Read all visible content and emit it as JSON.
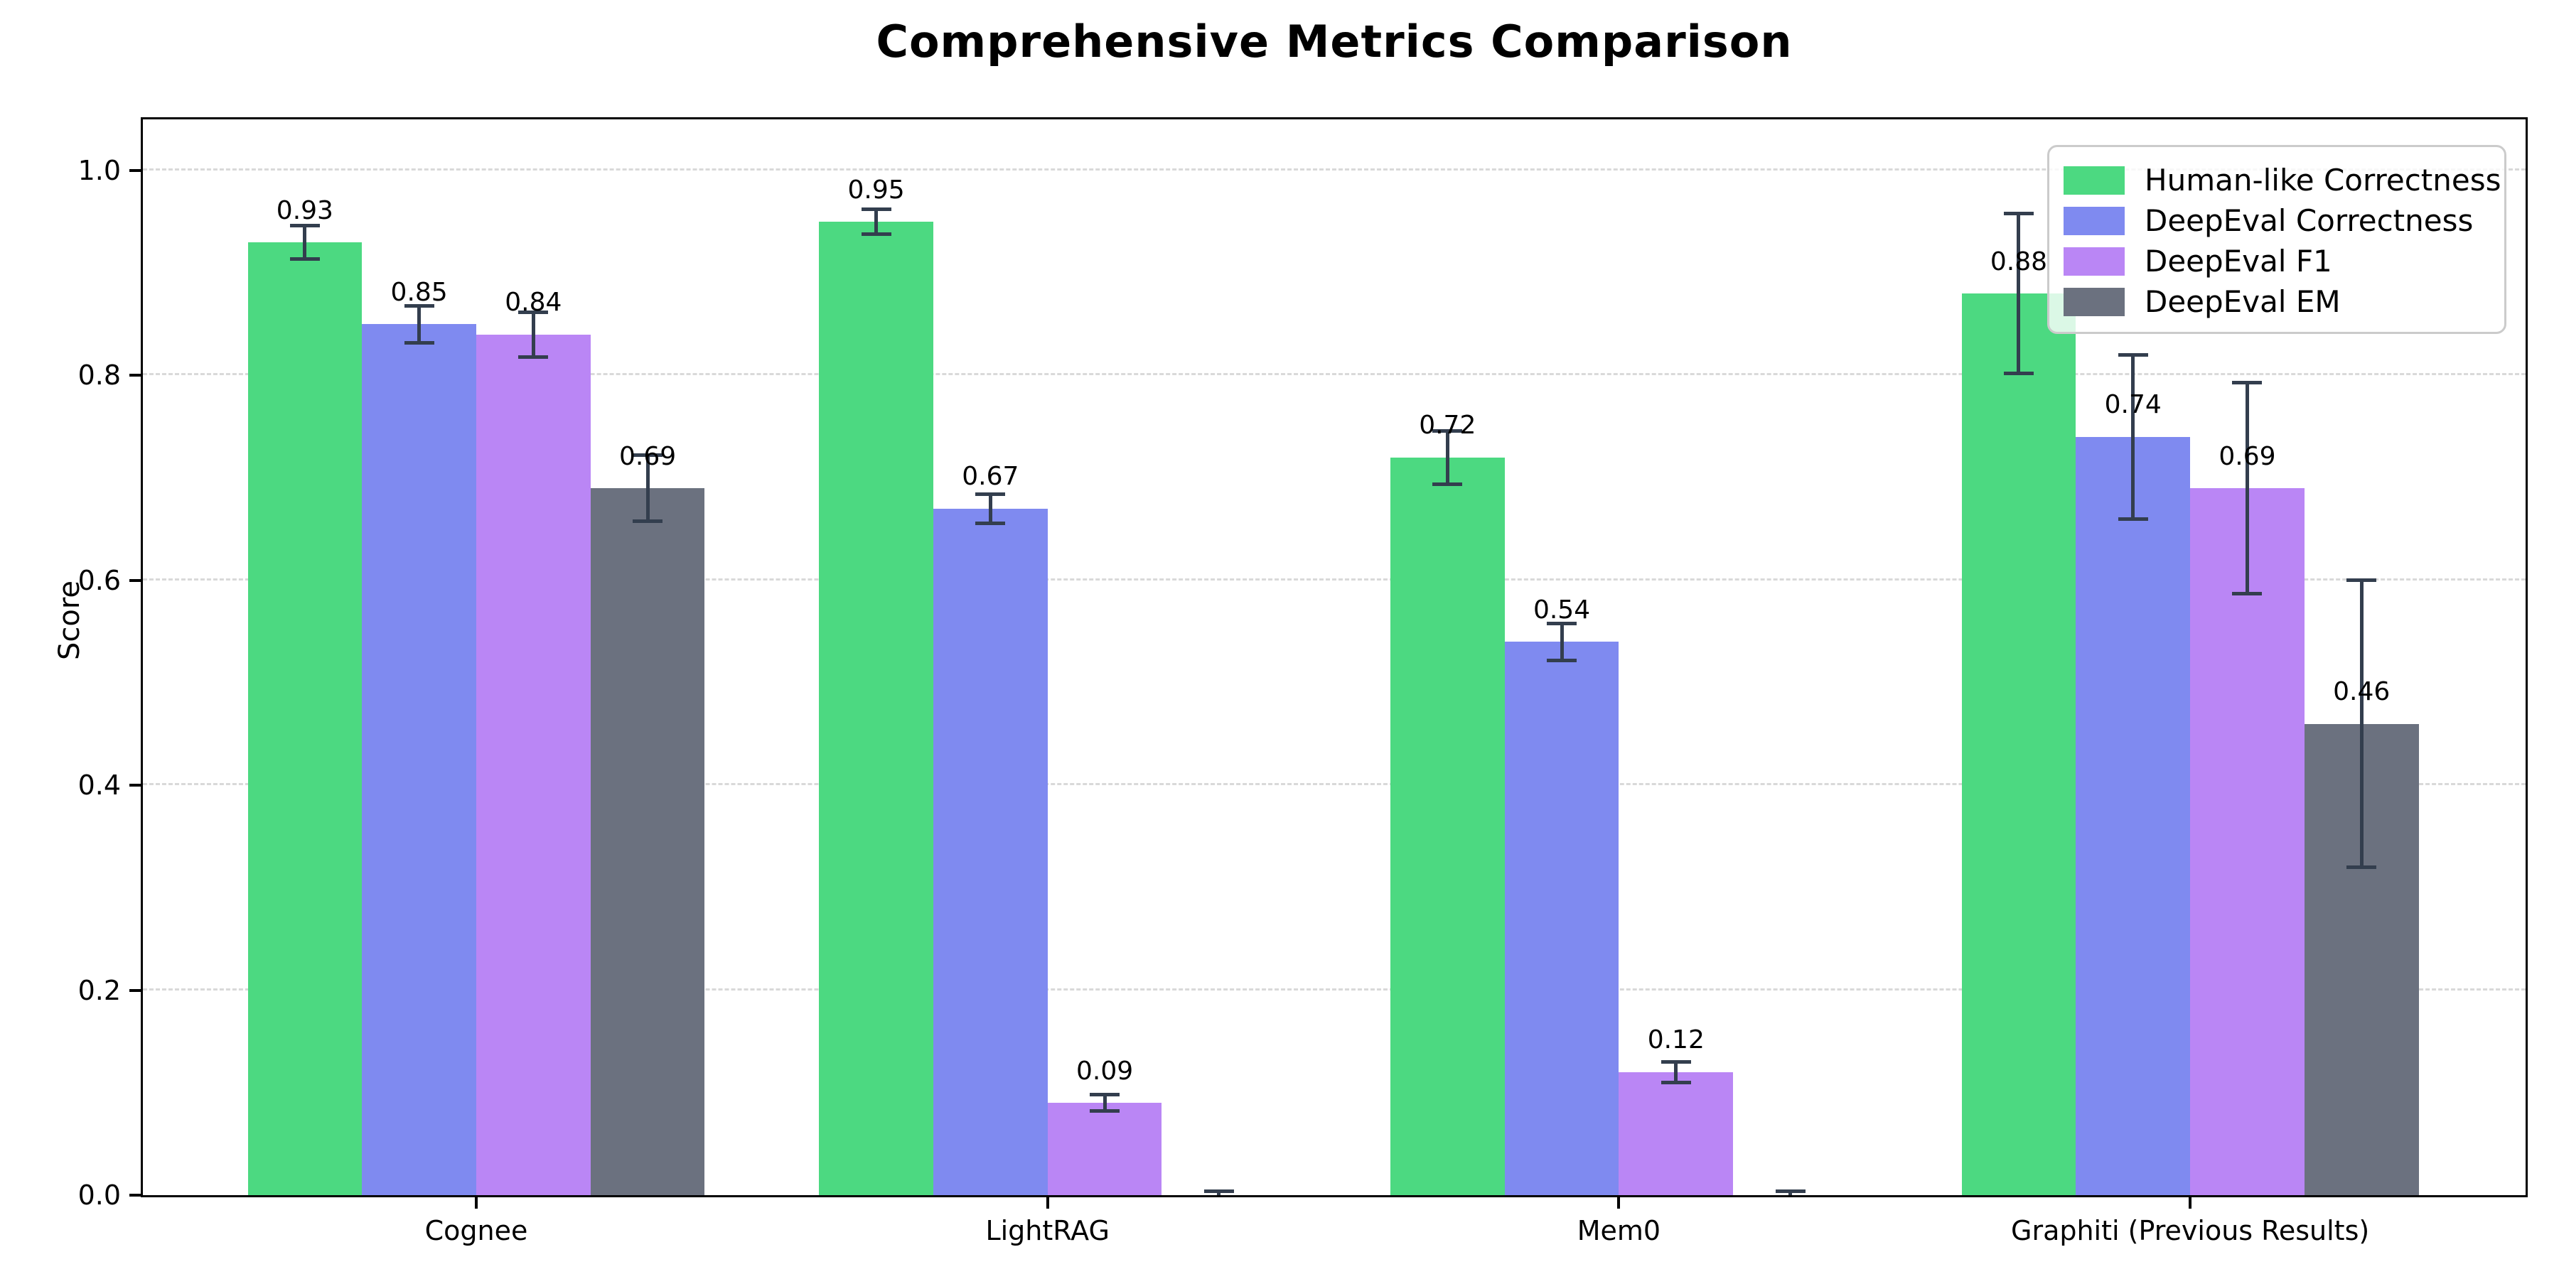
{
  "chart_data": {
    "type": "bar",
    "title": "Comprehensive Metrics Comparison",
    "ylabel": "Score",
    "xlabel": "",
    "categories": [
      "Cognee",
      "LightRAG",
      "Mem0",
      "Graphiti (Previous Results)"
    ],
    "series": [
      {
        "name": "Human-like Correctness",
        "color": "#4cd981",
        "values": [
          0.93,
          0.95,
          0.72,
          0.88
        ],
        "errors": [
          0.016,
          0.012,
          0.026,
          0.078
        ],
        "bar_labels": [
          "0.93",
          "0.95",
          "0.72",
          "0.88"
        ]
      },
      {
        "name": "DeepEval Correctness",
        "color": "#7f8af0",
        "values": [
          0.85,
          0.67,
          0.54,
          0.74
        ],
        "errors": [
          0.018,
          0.014,
          0.018,
          0.08
        ],
        "bar_labels": [
          "0.85",
          "0.67",
          "0.54",
          "0.74"
        ]
      },
      {
        "name": "DeepEval F1",
        "color": "#ba86f5",
        "values": [
          0.84,
          0.09,
          0.12,
          0.69
        ],
        "errors": [
          0.022,
          0.008,
          0.01,
          0.103
        ],
        "bar_labels": [
          "0.84",
          "0.09",
          "0.12",
          "0.69"
        ]
      },
      {
        "name": "DeepEval EM",
        "color": "#6b717f",
        "values": [
          0.69,
          0.0,
          0.0,
          0.46
        ],
        "errors": [
          0.032,
          0.004,
          0.004,
          0.14
        ],
        "bar_labels": [
          "0.69",
          "",
          "",
          "0.46"
        ]
      }
    ],
    "yticks": [
      "0.0",
      "0.2",
      "0.4",
      "0.6",
      "0.8",
      "1.0"
    ],
    "ylim": [
      0.0,
      1.05
    ],
    "grid": "horizontal-dashed",
    "gridline_color": "#d9d9d9",
    "error_bar_color": "#333e4e",
    "legend_position": "upper-right"
  }
}
